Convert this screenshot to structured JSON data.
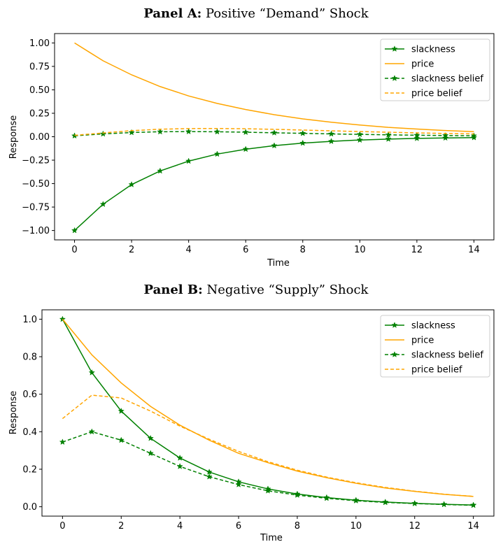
{
  "colors": {
    "slackness": "#008000",
    "price": "#FFA500",
    "axis": "#000000"
  },
  "chart_data": [
    {
      "type": "line",
      "title_bold": "Panel A:",
      "title_rest": " Positive “Demand” Shock",
      "xlabel": "Time",
      "ylabel": "Response",
      "xlim": [
        -0.7,
        14.7
      ],
      "ylim": [
        -1.1,
        1.1
      ],
      "xticks": [
        0,
        2,
        4,
        6,
        8,
        10,
        12,
        14
      ],
      "xtick_labels": [
        "0",
        "2",
        "4",
        "6",
        "8",
        "10",
        "12",
        "14"
      ],
      "yticks": [
        1.0,
        0.75,
        0.5,
        0.25,
        0.0,
        -0.25,
        -0.5,
        -0.75,
        -1.0
      ],
      "ytick_labels": [
        "1.00",
        "0.75",
        "0.50",
        "0.25",
        "0.00",
        "−0.25",
        "−0.50",
        "−0.75",
        "−1.00"
      ],
      "legend_position": "top-right",
      "x": [
        0,
        1,
        2,
        3,
        4,
        5,
        6,
        7,
        8,
        9,
        10,
        11,
        12,
        13,
        14
      ],
      "series": [
        {
          "name": "slackness",
          "color": "#008000",
          "dash": false,
          "marker": true,
          "values": [
            -1.0,
            -0.72,
            -0.51,
            -0.365,
            -0.26,
            -0.185,
            -0.133,
            -0.095,
            -0.068,
            -0.049,
            -0.035,
            -0.025,
            -0.018,
            -0.013,
            -0.009
          ]
        },
        {
          "name": "price",
          "color": "#FFA500",
          "dash": false,
          "marker": false,
          "values": [
            1.0,
            0.81,
            0.66,
            0.535,
            0.435,
            0.355,
            0.29,
            0.235,
            0.19,
            0.155,
            0.125,
            0.1,
            0.082,
            0.066,
            0.054
          ]
        },
        {
          "name": "slackness belief",
          "color": "#008000",
          "dash": true,
          "marker": true,
          "values": [
            0.01,
            0.03,
            0.045,
            0.053,
            0.055,
            0.053,
            0.048,
            0.042,
            0.036,
            0.03,
            0.025,
            0.02,
            0.016,
            0.013,
            0.01
          ]
        },
        {
          "name": "price belief",
          "color": "#FFA500",
          "dash": true,
          "marker": false,
          "values": [
            0.015,
            0.04,
            0.065,
            0.08,
            0.087,
            0.088,
            0.085,
            0.079,
            0.071,
            0.063,
            0.055,
            0.048,
            0.041,
            0.035,
            0.03
          ]
        }
      ]
    },
    {
      "type": "line",
      "title_bold": "Panel B:",
      "title_rest": " Negative “Supply” Shock",
      "xlabel": "Time",
      "ylabel": "Response",
      "xlim": [
        -0.7,
        14.7
      ],
      "ylim": [
        -0.05,
        1.05
      ],
      "xticks": [
        0,
        2,
        4,
        6,
        8,
        10,
        12,
        14
      ],
      "xtick_labels": [
        "0",
        "2",
        "4",
        "6",
        "8",
        "10",
        "12",
        "14"
      ],
      "yticks": [
        1.0,
        0.8,
        0.6,
        0.4,
        0.2,
        0.0
      ],
      "ytick_labels": [
        "1.0",
        "0.8",
        "0.6",
        "0.4",
        "0.2",
        "0.0"
      ],
      "legend_position": "top-right",
      "x": [
        0,
        1,
        2,
        3,
        4,
        5,
        6,
        7,
        8,
        9,
        10,
        11,
        12,
        13,
        14
      ],
      "series": [
        {
          "name": "slackness",
          "color": "#008000",
          "dash": false,
          "marker": true,
          "values": [
            1.0,
            0.715,
            0.51,
            0.365,
            0.26,
            0.185,
            0.133,
            0.095,
            0.068,
            0.049,
            0.035,
            0.025,
            0.018,
            0.013,
            0.009
          ]
        },
        {
          "name": "price",
          "color": "#FFA500",
          "dash": false,
          "marker": false,
          "values": [
            1.0,
            0.81,
            0.66,
            0.535,
            0.435,
            0.355,
            0.285,
            0.235,
            0.19,
            0.155,
            0.125,
            0.1,
            0.082,
            0.066,
            0.055
          ]
        },
        {
          "name": "slackness belief",
          "color": "#008000",
          "dash": true,
          "marker": true,
          "values": [
            0.345,
            0.4,
            0.355,
            0.285,
            0.215,
            0.16,
            0.118,
            0.085,
            0.062,
            0.045,
            0.032,
            0.023,
            0.017,
            0.012,
            0.008
          ]
        },
        {
          "name": "price belief",
          "color": "#FFA500",
          "dash": true,
          "marker": false,
          "values": [
            0.47,
            0.595,
            0.58,
            0.51,
            0.43,
            0.36,
            0.295,
            0.24,
            0.195,
            0.158,
            0.128,
            0.103,
            0.083,
            0.067,
            0.055
          ]
        }
      ]
    }
  ]
}
